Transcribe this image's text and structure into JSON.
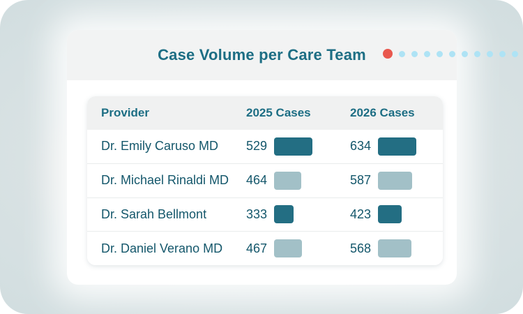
{
  "card": {
    "title": "Case Volume per Care Team"
  },
  "decoration": {
    "active_dot_color": "#e9584e",
    "inactive_dot_color": "#aee3f5",
    "inactive_dot_count": 11
  },
  "colors": {
    "title_teal": "#1d6e84",
    "text_teal": "#14576b",
    "bar_dark": "#236e83",
    "bar_light": "#a2c0c7",
    "card_header_bg": "#f2f3f3",
    "table_header_bg": "#f0f1f1"
  },
  "table": {
    "columns": [
      "Provider",
      "2025 Cases",
      "2026 Cases"
    ],
    "rows": [
      {
        "provider": "Dr. Emily Caruso MD",
        "cases_2025": "529",
        "cases_2026": "634",
        "bar_tone": "dark",
        "bar_2025_w": 55,
        "bar_2026_w": 55
      },
      {
        "provider": "Dr. Michael Rinaldi MD",
        "cases_2025": "464",
        "cases_2026": "587",
        "bar_tone": "light",
        "bar_2025_w": 39,
        "bar_2026_w": 49
      },
      {
        "provider": "Dr. Sarah Bellmont",
        "cases_2025": "333",
        "cases_2026": "423",
        "bar_tone": "dark",
        "bar_2025_w": 28,
        "bar_2026_w": 34
      },
      {
        "provider": "Dr. Daniel Verano MD",
        "cases_2025": "467",
        "cases_2026": "568",
        "bar_tone": "light",
        "bar_2025_w": 40,
        "bar_2026_w": 48
      }
    ]
  },
  "chart_data": {
    "type": "table",
    "title": "Case Volume per Care Team",
    "categories": [
      "Dr. Emily Caruso MD",
      "Dr. Michael Rinaldi MD",
      "Dr. Sarah Bellmont",
      "Dr. Daniel Verano MD"
    ],
    "series": [
      {
        "name": "2025 Cases",
        "values": [
          529,
          464,
          333,
          467
        ]
      },
      {
        "name": "2026 Cases",
        "values": [
          634,
          587,
          423,
          568
        ]
      }
    ]
  }
}
